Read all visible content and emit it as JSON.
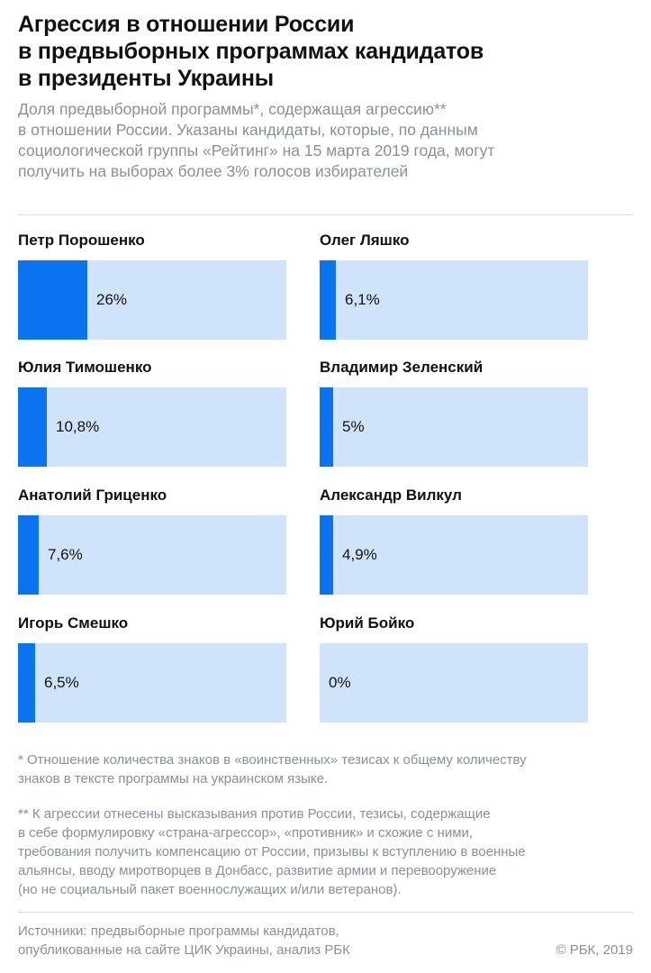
{
  "header": {
    "title_lines": [
      "Агрессия в отношении России",
      "в предвыборных программах кандидатов",
      "в президенты Украины"
    ],
    "subtitle_lines": [
      "Доля предвыборной программы*, содержащая агрессию**",
      "в отношении России. Указаны кандидаты, которые, по данным",
      "социологической группы «Рейтинг» на 15 марта 2019 года, могут",
      "получить на выборах более 3% голосов избирателей"
    ]
  },
  "colors": {
    "bar_fill": "#0a73f0",
    "bar_track": "#cfe3fb",
    "text_muted": "#8a8f98"
  },
  "chart_data": {
    "type": "bar",
    "unit": "%",
    "xlim": [
      0,
      100
    ],
    "categories": [
      "Петр Порошенко",
      "Олег Ляшко",
      "Юлия Тимошенко",
      "Владимир Зеленский",
      "Анатолий Гриценко",
      "Александр Вилкул",
      "Игорь Смешко",
      "Юрий Бойко"
    ],
    "values": [
      26,
      6.1,
      10.8,
      5,
      7.6,
      4.9,
      6.5,
      0
    ],
    "labels": [
      "26%",
      "6,1%",
      "10,8%",
      "5%",
      "7,6%",
      "4,9%",
      "6,5%",
      "0%"
    ]
  },
  "footnotes": {
    "note1_lines": [
      "* Отношение количества знаков в «воинственных» тезисах к общему количеству",
      "знаков в тексте программы на украинском языке."
    ],
    "note2_lines": [
      "** К агрессии отнесены высказывания против России, тезисы, содержащие",
      "в себе формулировку «страна-агрессор», «противник» и схожие с ними,",
      "требования получить компенсацию от России, призывы к вступлению в военные",
      "альянсы, вводу миротворцев в Донбасс, развитие армии и перевооружение",
      "(но не социальный пакет военнослужащих и/или ветеранов)."
    ],
    "sources_lines": [
      "Источники: предвыборные программы кандидатов,",
      "опубликованные на сайте ЦИК Украины, анализ РБК"
    ],
    "copyright": "© РБК, 2019"
  }
}
